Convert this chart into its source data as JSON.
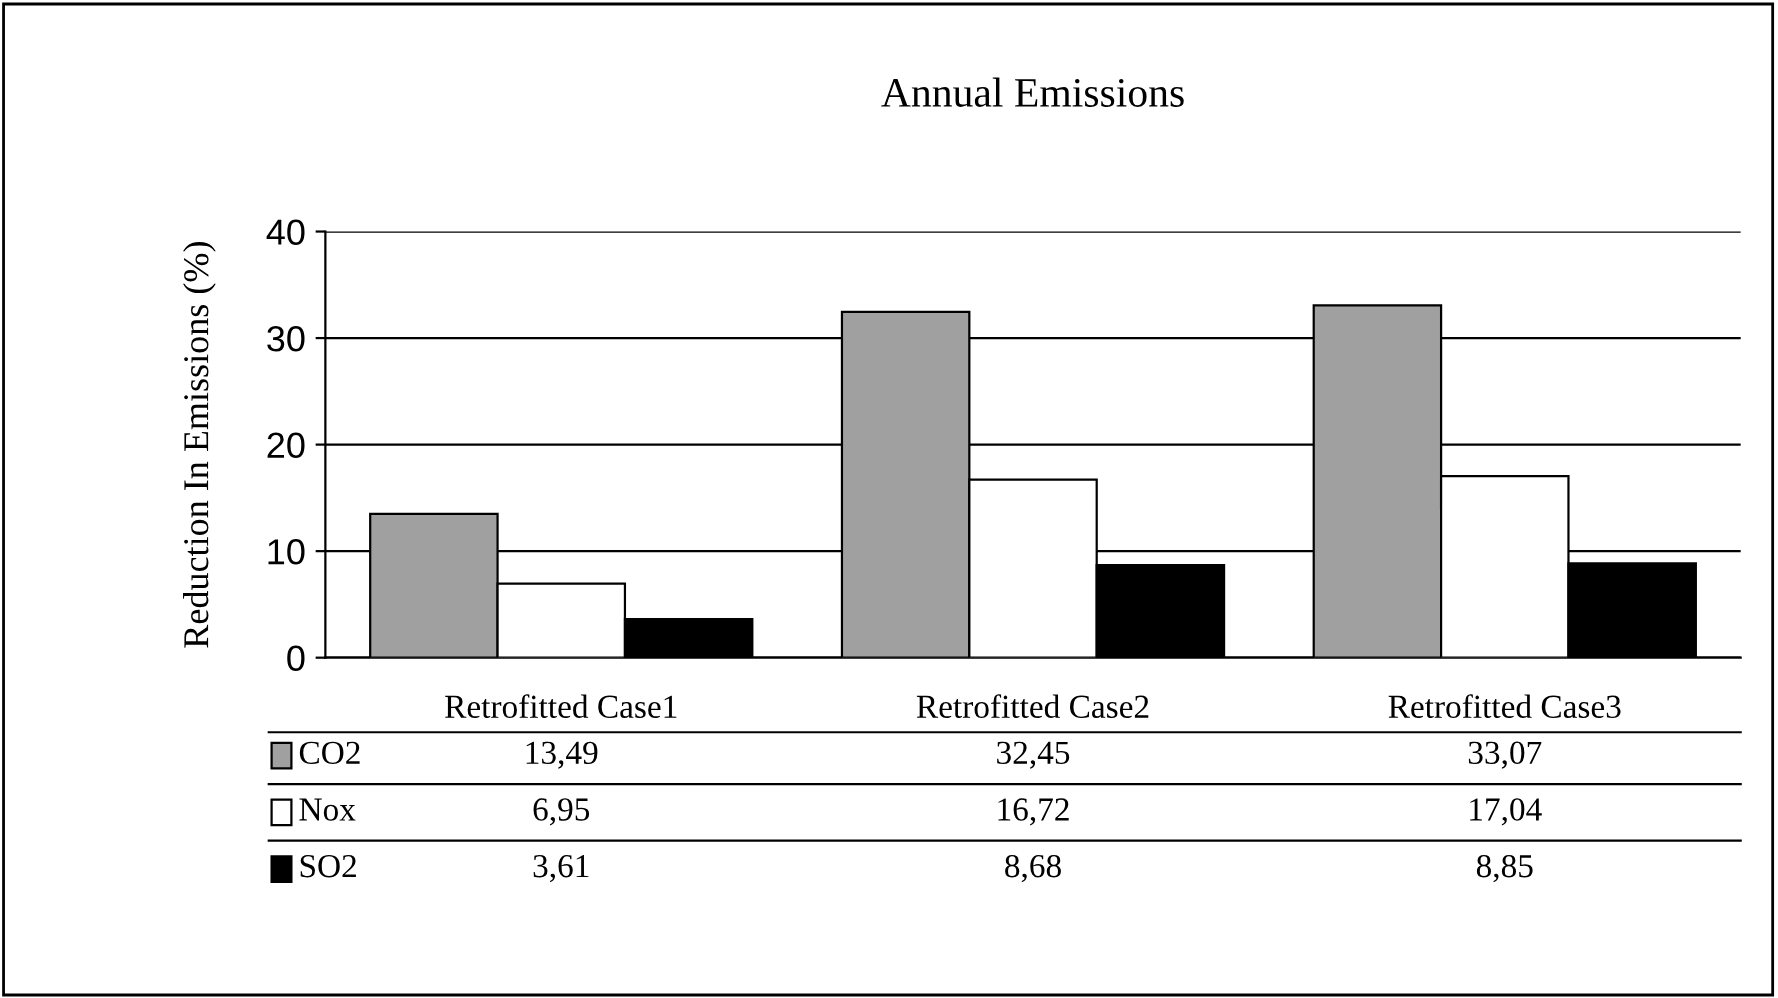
{
  "chart_data": {
    "type": "bar",
    "title": "Annual Emissions",
    "ylabel": "Reduction In Emissions (%)",
    "categories": [
      "Retrofitted Case1",
      "Retrofitted Case2",
      "Retrofitted Case3"
    ],
    "series": [
      {
        "name": "CO2",
        "color": "#a0a0a0",
        "values": [
          13.49,
          32.45,
          33.07
        ],
        "value_labels": [
          "13,49",
          "32,45",
          "33,07"
        ]
      },
      {
        "name": "Nox",
        "color": "#ffffff",
        "values": [
          6.95,
          16.72,
          17.04
        ],
        "value_labels": [
          "6,95",
          "16,72",
          "17,04"
        ]
      },
      {
        "name": "SO2",
        "color": "#000000",
        "values": [
          3.61,
          8.68,
          8.85
        ],
        "value_labels": [
          "3,61",
          "8,68",
          "8,85"
        ]
      }
    ],
    "ylim": [
      0,
      40
    ],
    "yticks": [
      0,
      10,
      20,
      30,
      40
    ],
    "grid": "y",
    "legend": "bottom"
  }
}
